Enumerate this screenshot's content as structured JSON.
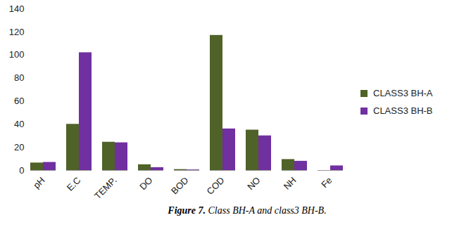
{
  "chart_data": {
    "type": "bar",
    "caption_label": "Figure 7.",
    "caption": "Class BH-A and class3 BH-B.",
    "categories": [
      "pH",
      "E.C",
      "TEMP.",
      "DO",
      "BOD",
      "COD",
      "NO",
      "NH",
      "Fe"
    ],
    "series": [
      {
        "name": "CLASS3 BH-A",
        "color": "#4f6228",
        "values": [
          6.5,
          40,
          24.5,
          5,
          0.8,
          117,
          35,
          9.5,
          0
        ]
      },
      {
        "name": "CLASS3 BH-B",
        "color": "#7030a0",
        "values": [
          7,
          102,
          24,
          2.5,
          0.5,
          36,
          30,
          8,
          4
        ]
      }
    ],
    "ylim": [
      0,
      140
    ],
    "yticks": [
      0,
      20,
      40,
      60,
      80,
      100,
      120,
      140
    ],
    "grid": false,
    "legend": "right"
  }
}
